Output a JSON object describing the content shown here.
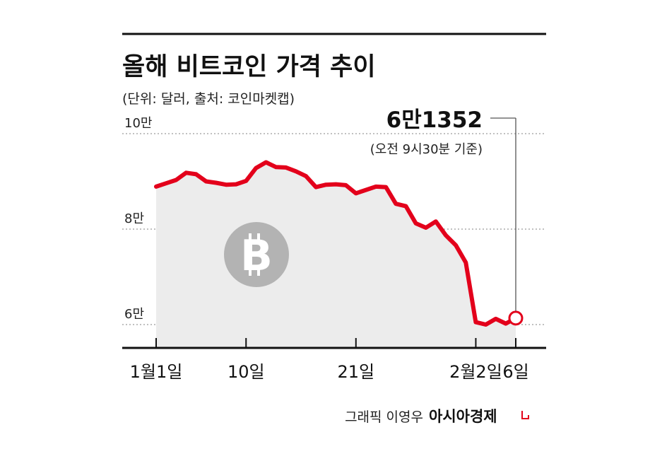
{
  "chart_data": {
    "type": "area",
    "title": "올해 비트코인 가격 추이",
    "subtitle": "(단위: 달러, 출처: 코인마켓캡)",
    "y_ticks": [
      {
        "value": 100000,
        "label": "10만"
      },
      {
        "value": 80000,
        "label": "8만"
      },
      {
        "value": 60000,
        "label": "6만"
      }
    ],
    "ylim": [
      56000,
      100000
    ],
    "x_ticks": [
      {
        "day": 1,
        "label": "1월1일"
      },
      {
        "day": 10,
        "label": "10일"
      },
      {
        "day": 21,
        "label": "21일"
      },
      {
        "day": 33,
        "label": "2월2일"
      },
      {
        "day": 37,
        "label": "6일"
      }
    ],
    "xlim": [
      0,
      38
    ],
    "series": [
      {
        "x": [
          1,
          2,
          3,
          4,
          5,
          6,
          7,
          8,
          9,
          10,
          11,
          12,
          13,
          14,
          15,
          16,
          17,
          18,
          19,
          20,
          21,
          22,
          23,
          24,
          25,
          26,
          27,
          28,
          29,
          30,
          31,
          32,
          33,
          34,
          35,
          36,
          37
        ],
        "y": [
          88900,
          89600,
          90300,
          91800,
          91500,
          90000,
          89700,
          89300,
          89400,
          90100,
          92800,
          94000,
          93000,
          92900,
          92100,
          91100,
          88800,
          89300,
          89400,
          89200,
          87500,
          88200,
          88900,
          88800,
          85300,
          84800,
          81200,
          80300,
          81600,
          78700,
          76600,
          73000,
          60500,
          60000,
          61200,
          60200,
          61352
        ],
        "color": "#e3001b"
      }
    ],
    "annotation": {
      "value_label": "6만1352",
      "note": "(오전 9시30분 기준)"
    },
    "grid": true,
    "legend": "none"
  },
  "icons": {
    "bitcoin_symbol": "bitcoin-coin-icon",
    "coin_glyph": "B"
  },
  "footer": {
    "credit": "그래픽 이영우",
    "brand": "아시아경제"
  },
  "colors": {
    "line": "#e3001b",
    "area": "#ececec",
    "coin": "#b3b3b3",
    "brand_mark": "#e3001b"
  }
}
